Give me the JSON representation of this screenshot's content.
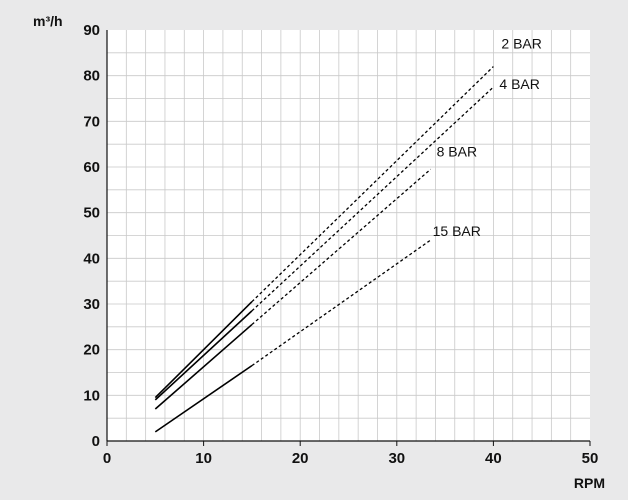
{
  "chart_data": {
    "type": "line",
    "title": "",
    "xlabel": "RPM",
    "ylabel": "m³/h",
    "xlim": [
      0,
      50
    ],
    "ylim": [
      0,
      90
    ],
    "x_ticks": [
      0,
      10,
      20,
      30,
      40,
      50
    ],
    "y_ticks": [
      0,
      10,
      20,
      30,
      40,
      50,
      60,
      70,
      80,
      90
    ],
    "grid": true,
    "legend": "direct labels at line ends",
    "series": [
      {
        "name": "2 BAR",
        "solid": [
          [
            5,
            9.5
          ],
          [
            15,
            30.5
          ]
        ],
        "dashed": [
          [
            15,
            30.5
          ],
          [
            40,
            82
          ]
        ]
      },
      {
        "name": "4 BAR",
        "solid": [
          [
            5,
            9
          ],
          [
            15,
            28.5
          ]
        ],
        "dashed": [
          [
            15,
            28.5
          ],
          [
            40,
            77.5
          ]
        ]
      },
      {
        "name": "8 BAR",
        "solid": [
          [
            5,
            7
          ],
          [
            15,
            25.5
          ]
        ],
        "dashed": [
          [
            15,
            25.5
          ],
          [
            33.5,
            59.5
          ]
        ]
      },
      {
        "name": "15 BAR",
        "solid": [
          [
            5,
            2
          ],
          [
            15,
            16.5
          ]
        ],
        "dashed": [
          [
            15,
            16.5
          ],
          [
            33.5,
            44
          ]
        ]
      }
    ]
  }
}
